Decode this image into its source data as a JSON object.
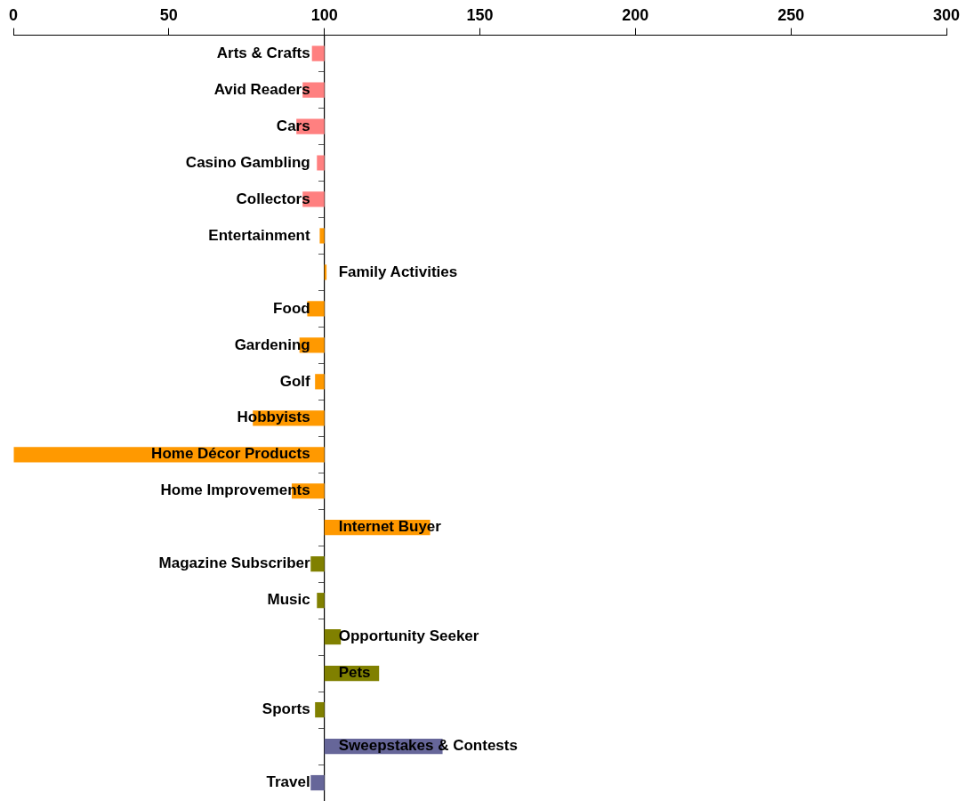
{
  "chart_data": {
    "type": "bar",
    "orientation": "horizontal",
    "categories": [
      "Arts & Crafts",
      "Avid Readers",
      "Cars",
      "Casino Gambling",
      "Collectors",
      "Entertainment",
      "Family Activities",
      "Food",
      "Gardening",
      "Golf",
      "Hobbyists",
      "Home Décor Products",
      "Home Improvements",
      "Internet Buyer",
      "Magazine Subscriber",
      "Music",
      "Opportunity Seeker",
      "Pets",
      "Sports",
      "Sweepstakes & Contests",
      "Travel"
    ],
    "base": [
      100,
      100,
      100,
      100,
      100,
      100,
      100,
      100,
      100,
      100,
      100,
      100,
      100,
      100,
      100,
      100,
      100,
      100,
      100,
      100,
      100
    ],
    "values": [
      -4,
      -7,
      -9,
      -2.4,
      -7,
      -1.5,
      0.7,
      -5.5,
      -8,
      -3,
      -23,
      -100,
      -10.5,
      34,
      -4.4,
      -2.4,
      5.3,
      17.6,
      -3,
      38,
      -4.4
    ],
    "colors": [
      "#ff8080",
      "#ff8080",
      "#ff8080",
      "#ff8080",
      "#ff8080",
      "#ff9900",
      "#ff9900",
      "#ff9900",
      "#ff9900",
      "#ff9900",
      "#ff9900",
      "#ff9900",
      "#ff9900",
      "#ff9900",
      "#808000",
      "#808000",
      "#808000",
      "#808000",
      "#808000",
      "#666699",
      "#666699"
    ],
    "xlim": [
      0,
      300
    ],
    "xticks": [
      0,
      50,
      100,
      150,
      200,
      250,
      300
    ],
    "grid": false,
    "legend": false
  }
}
